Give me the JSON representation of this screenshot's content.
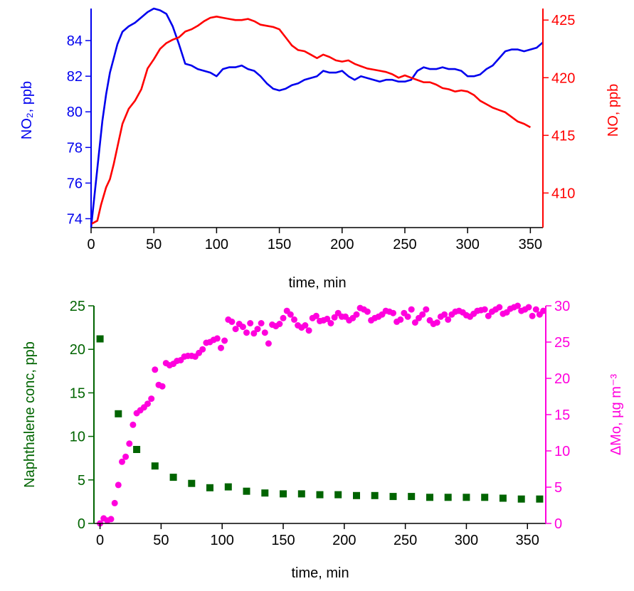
{
  "chart_data": [
    {
      "type": "line",
      "xlabel": "time, min",
      "ylabel_left": "NO₂, ppb",
      "ylabel_right": "NO, ppb",
      "xlim": [
        0,
        360
      ],
      "ylim_left": [
        73.5,
        85.8
      ],
      "ylim_right": [
        407,
        426
      ],
      "xticks": [
        0,
        50,
        100,
        150,
        200,
        250,
        300,
        350
      ],
      "yticks_left": [
        74,
        76,
        78,
        80,
        82,
        84
      ],
      "yticks_right": [
        410,
        415,
        420,
        425
      ],
      "grid": false,
      "colors": {
        "no2": "#0000ee",
        "no": "#ff0000",
        "axes": "#000000"
      },
      "series": [
        {
          "axis": "left",
          "color": "#0000ee",
          "x": [
            0,
            3,
            6,
            9,
            12,
            15,
            18,
            21,
            25,
            30,
            35,
            40,
            45,
            50,
            55,
            60,
            65,
            70,
            75,
            80,
            85,
            90,
            95,
            100,
            105,
            110,
            115,
            120,
            125,
            130,
            135,
            140,
            145,
            150,
            155,
            160,
            165,
            170,
            175,
            180,
            185,
            190,
            195,
            200,
            205,
            210,
            215,
            220,
            225,
            230,
            235,
            240,
            245,
            250,
            255,
            260,
            265,
            270,
            275,
            280,
            285,
            290,
            295,
            300,
            305,
            310,
            315,
            320,
            325,
            330,
            335,
            340,
            345,
            350,
            355,
            360
          ],
          "values": [
            73.5,
            75.5,
            77.5,
            79.5,
            81.0,
            82.2,
            83.0,
            83.8,
            84.5,
            84.8,
            85.0,
            85.3,
            85.6,
            85.8,
            85.7,
            85.5,
            84.8,
            83.8,
            82.7,
            82.6,
            82.4,
            82.3,
            82.2,
            82.0,
            82.4,
            82.5,
            82.5,
            82.6,
            82.4,
            82.3,
            82.0,
            81.6,
            81.3,
            81.2,
            81.3,
            81.5,
            81.6,
            81.8,
            81.9,
            82.0,
            82.3,
            82.2,
            82.2,
            82.3,
            82.0,
            81.8,
            82.0,
            81.9,
            81.8,
            81.7,
            81.8,
            81.8,
            81.7,
            81.7,
            81.8,
            82.3,
            82.5,
            82.4,
            82.4,
            82.5,
            82.4,
            82.4,
            82.3,
            82.0,
            82.0,
            82.1,
            82.4,
            82.6,
            83.0,
            83.4,
            83.5,
            83.5,
            83.4,
            83.5,
            83.6,
            83.9
          ]
        },
        {
          "axis": "right",
          "color": "#ff0000",
          "x": [
            0,
            5,
            8,
            12,
            15,
            18,
            22,
            25,
            30,
            35,
            40,
            45,
            50,
            55,
            60,
            65,
            70,
            75,
            80,
            85,
            90,
            95,
            100,
            105,
            110,
            115,
            120,
            125,
            130,
            135,
            140,
            145,
            150,
            155,
            160,
            165,
            170,
            175,
            180,
            185,
            190,
            195,
            200,
            205,
            210,
            215,
            220,
            225,
            230,
            235,
            240,
            245,
            250,
            255,
            260,
            265,
            270,
            275,
            280,
            285,
            290,
            295,
            300,
            305,
            310,
            315,
            320,
            325,
            330,
            335,
            340,
            345,
            350
          ],
          "values": [
            407.3,
            407.6,
            409.0,
            410.5,
            411.2,
            412.5,
            414.5,
            416.0,
            417.3,
            418.0,
            419.0,
            420.8,
            421.6,
            422.5,
            423.0,
            423.3,
            423.5,
            424.0,
            424.2,
            424.5,
            424.9,
            425.2,
            425.3,
            425.2,
            425.1,
            425.0,
            425.0,
            425.1,
            424.9,
            424.6,
            424.5,
            424.4,
            424.2,
            423.5,
            422.8,
            422.4,
            422.3,
            422.0,
            421.7,
            422.0,
            421.8,
            421.5,
            421.4,
            421.5,
            421.2,
            421.0,
            420.8,
            420.7,
            420.6,
            420.5,
            420.3,
            420.0,
            420.2,
            420.0,
            419.8,
            419.6,
            419.6,
            419.4,
            419.1,
            419.0,
            418.8,
            418.9,
            418.8,
            418.5,
            418.0,
            417.7,
            417.4,
            417.2,
            417.0,
            416.6,
            416.2,
            416.0,
            415.7
          ]
        }
      ]
    },
    {
      "type": "scatter",
      "xlabel": "time, min",
      "ylabel_left": "Naphthalene conc, ppb",
      "ylabel_right": "ΔMo, µg m⁻³",
      "xlim": [
        -5,
        365
      ],
      "ylim_left": [
        0,
        25
      ],
      "ylim_right": [
        0,
        30
      ],
      "xticks": [
        0,
        50,
        100,
        150,
        200,
        250,
        300,
        350
      ],
      "yticks_left": [
        0,
        5,
        10,
        15,
        20,
        25
      ],
      "yticks_right": [
        0,
        5,
        10,
        15,
        20,
        25,
        30
      ],
      "grid": false,
      "colors": {
        "naphthalene": "#006400",
        "mass": "#ff00dd",
        "axes": "#000000"
      },
      "series": [
        {
          "axis": "left",
          "marker": "square",
          "color": "#006400",
          "x": [
            0,
            15,
            30,
            45,
            60,
            75,
            90,
            105,
            120,
            135,
            150,
            165,
            180,
            195,
            210,
            225,
            240,
            255,
            270,
            285,
            300,
            315,
            330,
            345,
            360
          ],
          "values": [
            21.2,
            12.6,
            8.5,
            6.6,
            5.3,
            4.6,
            4.1,
            4.2,
            3.7,
            3.5,
            3.4,
            3.4,
            3.3,
            3.3,
            3.2,
            3.2,
            3.1,
            3.1,
            3.0,
            3.0,
            3.0,
            3.0,
            2.9,
            2.8,
            2.8
          ]
        },
        {
          "axis": "right",
          "marker": "circle",
          "color": "#ff00dd",
          "x": [
            0,
            3,
            6,
            9,
            12,
            15,
            18,
            21,
            24,
            27,
            30,
            33,
            36,
            39,
            42,
            45,
            48,
            51,
            54,
            57,
            60,
            63,
            66,
            69,
            72,
            75,
            78,
            81,
            84,
            87,
            90,
            93,
            96,
            99,
            102,
            105,
            108,
            111,
            114,
            117,
            120,
            123,
            126,
            129,
            132,
            135,
            138,
            141,
            144,
            147,
            150,
            153,
            156,
            159,
            162,
            165,
            168,
            171,
            174,
            177,
            180,
            183,
            186,
            189,
            192,
            195,
            198,
            201,
            204,
            207,
            210,
            213,
            216,
            219,
            222,
            225,
            228,
            231,
            234,
            237,
            240,
            243,
            246,
            249,
            252,
            255,
            258,
            261,
            264,
            267,
            270,
            273,
            276,
            279,
            282,
            285,
            288,
            291,
            294,
            297,
            300,
            303,
            306,
            309,
            312,
            315,
            318,
            321,
            324,
            327,
            330,
            333,
            336,
            339,
            342,
            345,
            348,
            351,
            354,
            357,
            360,
            363
          ],
          "values": [
            0.0,
            0.7,
            0.4,
            0.6,
            2.8,
            5.3,
            8.5,
            9.2,
            11.0,
            13.6,
            15.2,
            15.6,
            16.0,
            16.5,
            17.2,
            21.2,
            19.1,
            18.9,
            22.1,
            21.8,
            22.0,
            22.4,
            22.5,
            23.0,
            23.1,
            23.1,
            23.0,
            23.5,
            24.0,
            24.9,
            25.0,
            25.3,
            25.5,
            24.2,
            25.2,
            28.1,
            27.8,
            26.8,
            27.5,
            27.1,
            26.3,
            27.6,
            26.2,
            26.8,
            27.6,
            26.3,
            24.8,
            27.4,
            27.2,
            27.5,
            28.3,
            29.3,
            28.8,
            28.1,
            27.3,
            27.0,
            27.3,
            26.6,
            28.3,
            28.6,
            27.9,
            28.0,
            28.2,
            27.6,
            28.4,
            29.0,
            28.5,
            28.5,
            28.0,
            28.3,
            28.8,
            29.7,
            29.5,
            29.2,
            28.0,
            28.3,
            28.5,
            28.8,
            29.3,
            29.2,
            29.0,
            27.8,
            28.1,
            29.0,
            28.5,
            29.5,
            27.7,
            28.3,
            28.8,
            29.5,
            28.0,
            27.5,
            27.7,
            28.5,
            28.8,
            28.1,
            28.8,
            29.2,
            29.3,
            29.1,
            28.7,
            28.5,
            28.9,
            29.3,
            29.4,
            29.5,
            28.6,
            29.2,
            29.5,
            29.8,
            28.9,
            29.1,
            29.6,
            29.8,
            30.0,
            29.3,
            29.5,
            29.8,
            28.6,
            29.5,
            28.8,
            29.3
          ]
        }
      ]
    }
  ]
}
